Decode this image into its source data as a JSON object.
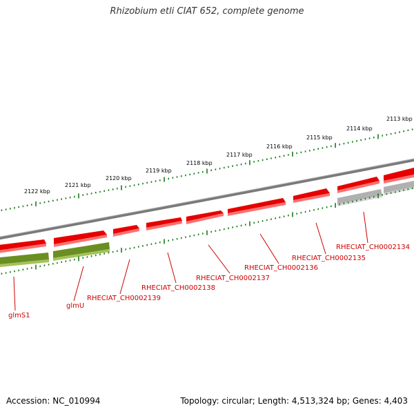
{
  "title": "Rhizobium etli CIAT 652, complete genome",
  "accession": "Accession: NC_010994",
  "topology": "Topology: circular; Length: 4,513,324 bp; Genes: 4,403",
  "colors": {
    "tick": "#1a7a1a",
    "backbone": "#7a7a7a",
    "gene_red": "#e60000",
    "gene_green": "#6b8e23",
    "gene_gray": "#b0b0b0",
    "label_red": "#cc0000"
  },
  "scale_labels": [
    "2113 kbp",
    "2114 kbp",
    "2115 kbp",
    "2116 kbp",
    "2117 kbp",
    "2118 kbp",
    "2119 kbp",
    "2120 kbp",
    "2121 kbp",
    "2122 kbp"
  ],
  "gene_labels": [
    "glmS1",
    "glmU",
    "RHECIAT_CH0002139",
    "RHECIAT_CH0002138",
    "RHECIAT_CH0002137",
    "RHECIAT_CH0002136",
    "RHECIAT_CH0002135",
    "RHECIAT_CH0002134"
  ]
}
